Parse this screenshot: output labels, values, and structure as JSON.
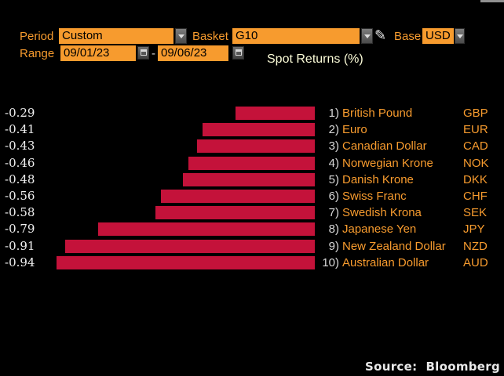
{
  "toolbar": {
    "period_label": "Period",
    "period_value": "Custom",
    "basket_label": "Basket",
    "basket_value": "G10",
    "base_label": "Base",
    "base_value": "USD",
    "range_label": "Range",
    "range_start": "09/01/23",
    "range_separator": "-",
    "range_end": "09/06/23"
  },
  "icons": {
    "pencil": "✎"
  },
  "chart_data": {
    "type": "bar",
    "orientation": "horizontal",
    "title": "Spot Returns (%)",
    "xlim": [
      -0.97,
      0
    ],
    "bar_color": "#C4123A",
    "grid": false,
    "ranks": [
      "1)",
      "2)",
      "3)",
      "4)",
      "5)",
      "6)",
      "7)",
      "8)",
      "9)",
      "10)"
    ],
    "categories": [
      "British Pound",
      "Euro",
      "Canadian Dollar",
      "Norwegian Krone",
      "Danish Krone",
      "Swiss Franc",
      "Swedish Krona",
      "Japanese Yen",
      "New Zealand Dollar",
      "Australian Dollar"
    ],
    "codes": [
      "GBP",
      "EUR",
      "CAD",
      "NOK",
      "DKK",
      "CHF",
      "SEK",
      "JPY",
      "NZD",
      "AUD"
    ],
    "values": [
      -0.29,
      -0.41,
      -0.43,
      -0.46,
      -0.48,
      -0.56,
      -0.58,
      -0.79,
      -0.91,
      -0.94
    ],
    "value_labels": [
      "-0.29",
      "-0.41",
      "-0.43",
      "-0.46",
      "-0.48",
      "-0.56",
      "-0.58",
      "-0.79",
      "-0.91",
      "-0.94"
    ]
  },
  "footer": {
    "source": "Source:  Bloomberg"
  },
  "colors": {
    "accent_orange": "#F79B2E",
    "bar_red": "#C4123A",
    "title_yellow": "#FCFCD8",
    "background": "#000000"
  }
}
